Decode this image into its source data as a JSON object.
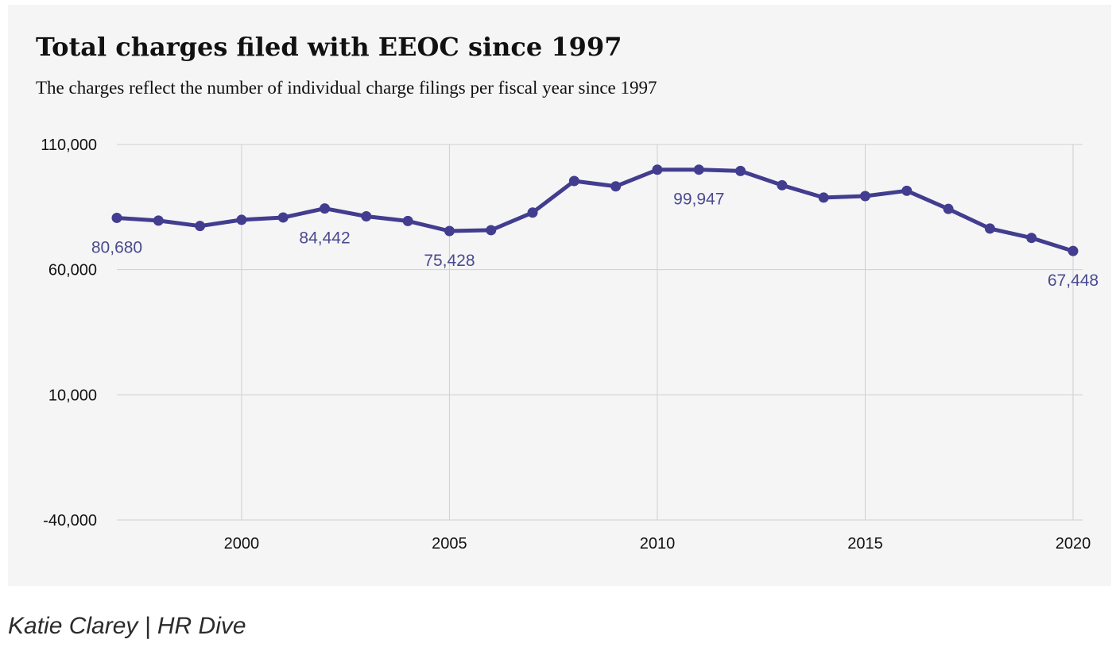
{
  "chart_data": {
    "type": "line",
    "title": "Total charges filed with EEOC since 1997",
    "subtitle": "The charges reflect the number of individual charge filings per fiscal year since 1997",
    "xlabel": "",
    "ylabel": "",
    "x": [
      1997,
      1998,
      1999,
      2000,
      2001,
      2002,
      2003,
      2004,
      2005,
      2006,
      2007,
      2008,
      2009,
      2010,
      2011,
      2012,
      2013,
      2014,
      2015,
      2016,
      2017,
      2018,
      2019,
      2020
    ],
    "series": [
      {
        "name": "",
        "color": "#423d8f",
        "values": [
          80680,
          79591,
          77444,
          79896,
          80840,
          84442,
          81293,
          79432,
          75428,
          75768,
          82792,
          95402,
          93277,
          99922,
          99947,
          99412,
          93727,
          88778,
          89385,
          91503,
          84254,
          76418,
          72675,
          67448
        ]
      }
    ],
    "data_labels": [
      {
        "x": 1997,
        "text": "80,680"
      },
      {
        "x": 2002,
        "text": "84,442"
      },
      {
        "x": 2005,
        "text": "75,428"
      },
      {
        "x": 2011,
        "text": "99,947"
      },
      {
        "x": 2020,
        "text": "67,448"
      }
    ],
    "xlim": [
      1997,
      2020
    ],
    "ylim": [
      -40000,
      110000
    ],
    "xticks": [
      2000,
      2005,
      2010,
      2015,
      2020
    ],
    "yticks": [
      -40000,
      10000,
      60000,
      110000
    ],
    "ytick_labels": [
      "-40,000",
      "10,000",
      "60,000",
      "110,000"
    ],
    "grid": true,
    "legend": "none"
  },
  "credit": "Katie Clarey | HR Dive"
}
